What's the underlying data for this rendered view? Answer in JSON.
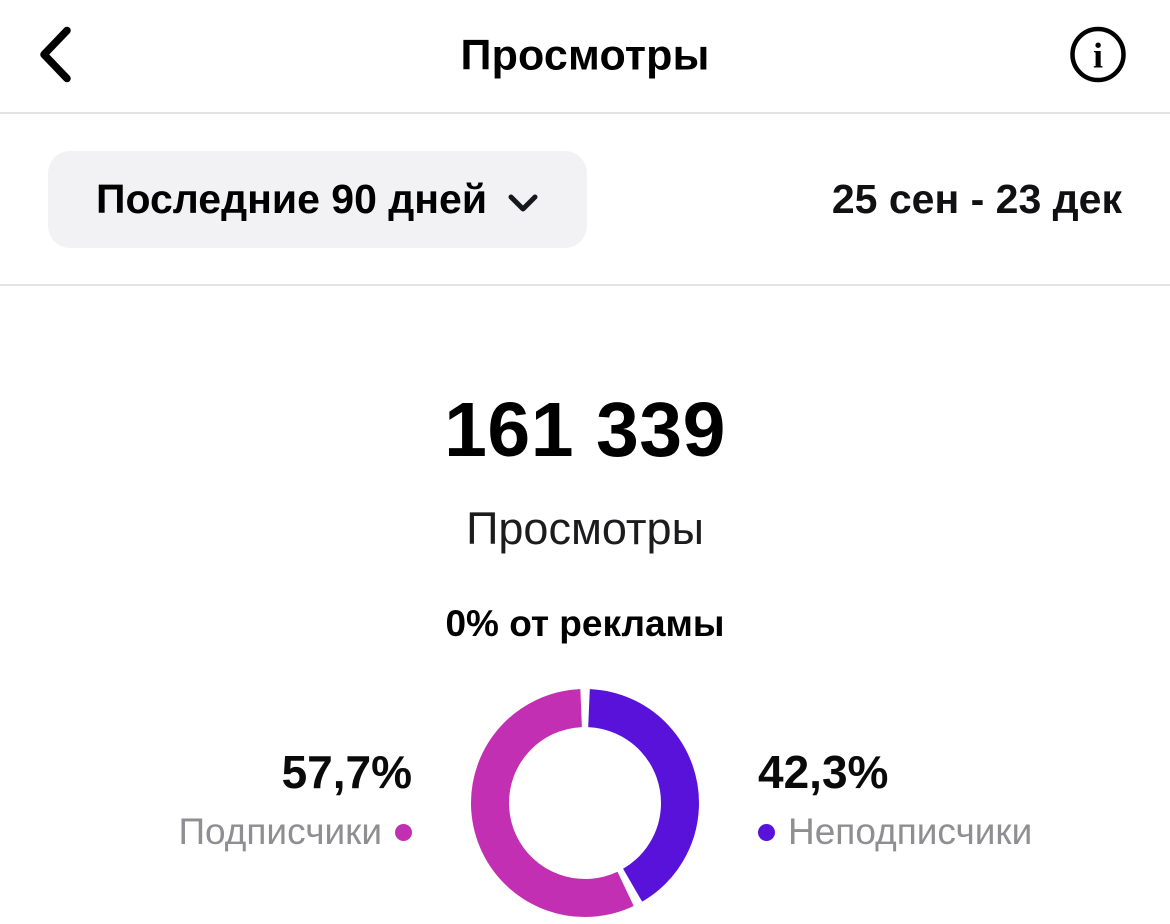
{
  "header": {
    "title": "Просмотры"
  },
  "filter": {
    "period": "Последние 90 дней",
    "date_range": "25 сен - 23 дек"
  },
  "summary": {
    "views_count": "161 339",
    "views_label": "Просмотры",
    "ads_share": "0% от рекламы"
  },
  "chart_data": {
    "type": "pie",
    "donut": true,
    "total_views": 161339,
    "start_angle_deg": 0,
    "direction": "clockwise",
    "first_slice_from_top": "Неподписчики",
    "slices": [
      {
        "label": "Подписчики",
        "value_pct": 57.7,
        "display": "57,7%",
        "color": "#C32FB2"
      },
      {
        "label": "Неподписчики",
        "value_pct": 42.3,
        "display": "42,3%",
        "color": "#5912D9"
      }
    ]
  },
  "colors": {
    "background": "#FFFFFF",
    "divider": "#E3E3E5",
    "pill_background": "#F2F2F4",
    "text_primary": "#000000",
    "text_secondary": "#8E8E93",
    "followers": "#C32FB2",
    "non_followers": "#5912D9"
  }
}
